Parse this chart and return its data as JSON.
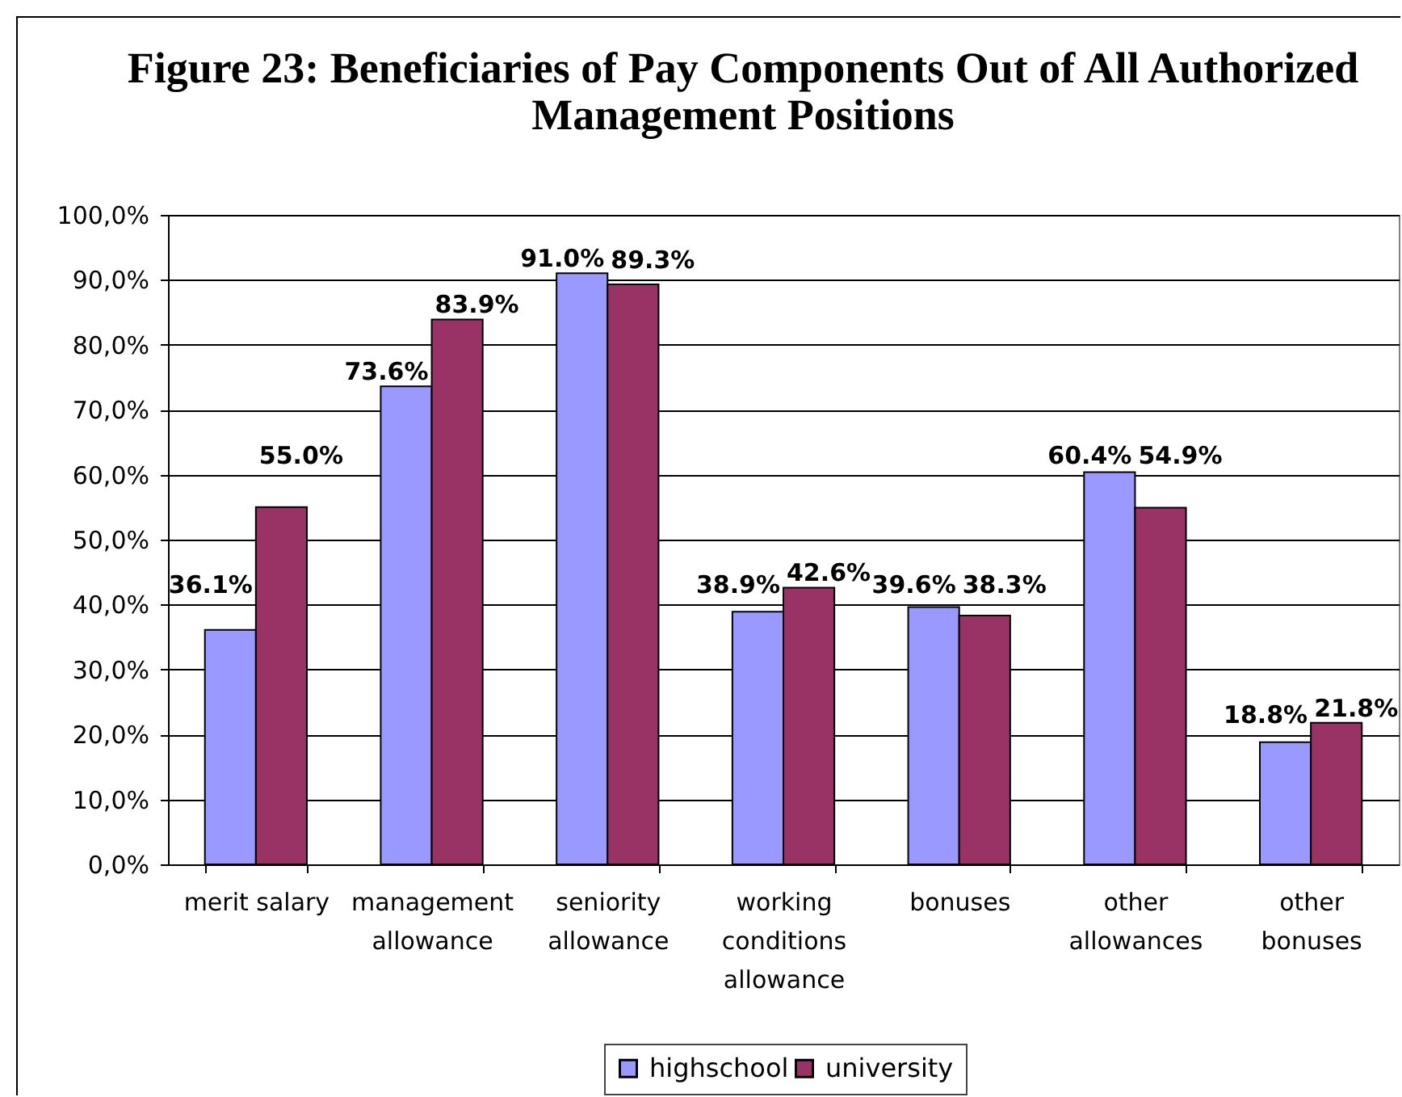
{
  "chart_data": {
    "type": "bar",
    "title": "Figure 23: Beneficiaries of Pay Components Out of All Authorized Management Positions",
    "categories": [
      "merit salary",
      "management allowance",
      "seniority allowance",
      "working conditions allowance",
      "bonuses",
      "other allowances",
      "other bonuses"
    ],
    "series": [
      {
        "name": "highschool",
        "color": "#9999ff",
        "values": [
          36.1,
          73.6,
          91.0,
          38.9,
          39.6,
          60.4,
          18.8
        ],
        "value_labels": [
          "36.1%",
          "73.6%",
          "91.0%",
          "38.9%",
          "39.6%",
          "60.4%",
          "18.8%"
        ]
      },
      {
        "name": "university",
        "color": "#993366",
        "values": [
          55.0,
          83.9,
          89.3,
          42.6,
          38.3,
          54.9,
          21.8
        ],
        "value_labels": [
          "55.0%",
          "83.9%",
          "89.3%",
          "42.6%",
          "38.3%",
          "54.9%",
          "21.8%"
        ]
      }
    ],
    "ylim": [
      0,
      100
    ],
    "yticks": [
      {
        "value": 0,
        "label": "0,0%"
      },
      {
        "value": 10,
        "label": "10,0%"
      },
      {
        "value": 20,
        "label": "20,0%"
      },
      {
        "value": 30,
        "label": "30,0%"
      },
      {
        "value": 40,
        "label": "40,0%"
      },
      {
        "value": 50,
        "label": "50,0%"
      },
      {
        "value": 60,
        "label": "60,0%"
      },
      {
        "value": 70,
        "label": "70,0%"
      },
      {
        "value": 80,
        "label": "80,0%"
      },
      {
        "value": 90,
        "label": "90,0%"
      },
      {
        "value": 100,
        "label": "100,0%"
      }
    ],
    "grid": "y",
    "legend": "bottom"
  }
}
